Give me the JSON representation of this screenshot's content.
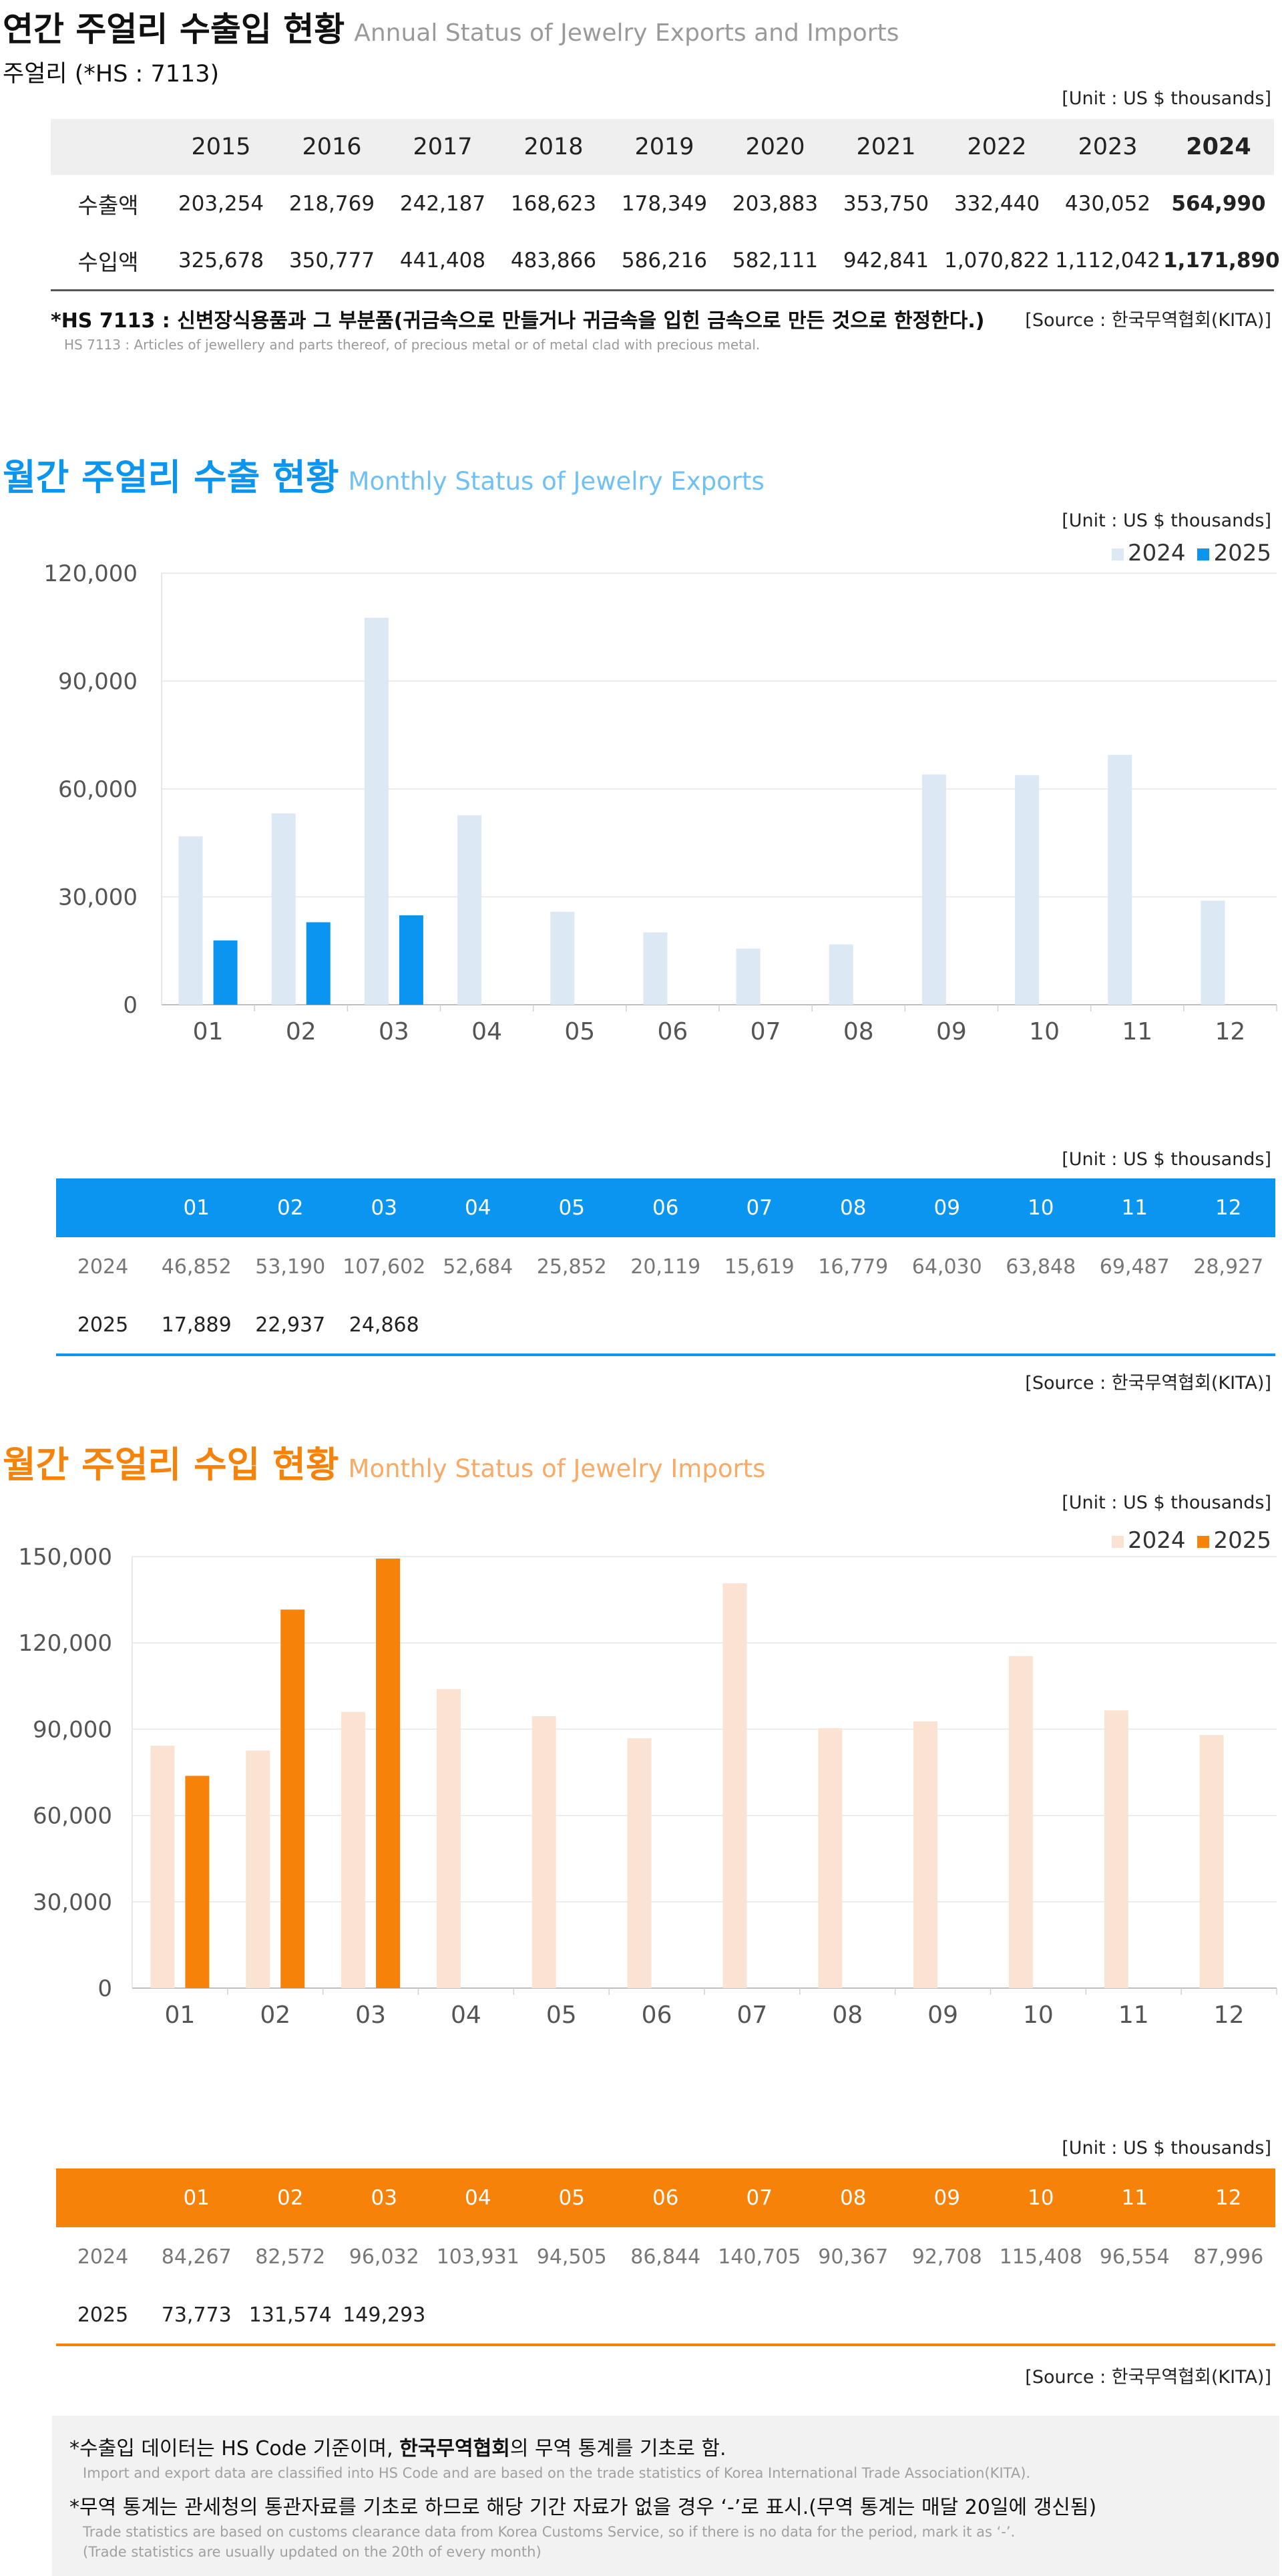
{
  "annual": {
    "title": "연간 주얼리 수출입 현황",
    "subtitle": "Annual Status of Jewelry Exports and Imports",
    "hs_label": "주얼리 (*HS : 7113)",
    "unit": "[Unit : US $ thousands]",
    "years": [
      "2015",
      "2016",
      "2017",
      "2018",
      "2019",
      "2020",
      "2021",
      "2022",
      "2023",
      "2024"
    ],
    "rows": [
      {
        "label": "수출액",
        "values": [
          "203,254",
          "218,769",
          "242,187",
          "168,623",
          "178,349",
          "203,883",
          "353,750",
          "332,440",
          "430,052",
          "564,990"
        ]
      },
      {
        "label": "수입액",
        "values": [
          "325,678",
          "350,777",
          "441,408",
          "483,866",
          "586,216",
          "582,111",
          "942,841",
          "1,070,822",
          "1,112,042",
          "1,171,890"
        ]
      }
    ],
    "footnote": "*HS 7113 : 신변장식용품과 그 부분품(귀금속으로 만들거나 귀금속을 입힌 금속으로 만든 것으로 한정한다.)",
    "footnote_en": "HS 7113 : Articles of jewellery and parts thereof, of precious metal or of metal clad with precious metal.",
    "source": "[Source : 한국무역협회(KITA)]"
  },
  "exports": {
    "title": "월간 주얼리 수출 현황",
    "subtitle": "Monthly Status of Jewelry Exports",
    "unit": "[Unit : US $ thousands]",
    "source": "[Source : 한국무역협회(KITA)]",
    "table_rows": [
      {
        "label": "2024",
        "values": [
          "46,852",
          "53,190",
          "107,602",
          "52,684",
          "25,852",
          "20,119",
          "15,619",
          "16,779",
          "64,030",
          "63,848",
          "69,487",
          "28,927"
        ]
      },
      {
        "label": "2025",
        "values": [
          "17,889",
          "22,937",
          "24,868",
          "",
          "",
          "",
          "",
          "",
          "",
          "",
          "",
          ""
        ]
      }
    ]
  },
  "imports": {
    "title": "월간 주얼리 수입 현황",
    "subtitle": "Monthly Status of Jewelry Imports",
    "unit": "[Unit : US $ thousands]",
    "source": "[Source : 한국무역협회(KITA)]",
    "table_rows": [
      {
        "label": "2024",
        "values": [
          "84,267",
          "82,572",
          "96,032",
          "103,931",
          "94,505",
          "86,844",
          "140,705",
          "90,367",
          "92,708",
          "115,408",
          "96,554",
          "87,996"
        ]
      },
      {
        "label": "2025",
        "values": [
          "73,773",
          "131,574",
          "149,293",
          "",
          "",
          "",
          "",
          "",
          "",
          "",
          "",
          ""
        ]
      }
    ]
  },
  "chart_data": [
    {
      "type": "bar",
      "categories": [
        "01",
        "02",
        "03",
        "04",
        "05",
        "06",
        "07",
        "08",
        "09",
        "10",
        "11",
        "12"
      ],
      "series": [
        {
          "name": "2024",
          "color": "#dde8f5",
          "values": [
            46852,
            53190,
            107602,
            52684,
            25852,
            20119,
            15619,
            16779,
            64030,
            63848,
            69487,
            28927
          ]
        },
        {
          "name": "2025",
          "color": "#0a96f0",
          "values": [
            17889,
            22937,
            24868,
            null,
            null,
            null,
            null,
            null,
            null,
            null,
            null,
            null
          ]
        }
      ],
      "ylim": [
        0,
        120000
      ],
      "yticks": [
        0,
        30000,
        60000,
        90000,
        120000
      ],
      "ytick_labels": [
        "0",
        "30,000",
        "60,000",
        "90,000",
        "120,000"
      ],
      "grid": true,
      "legend": "top-right"
    },
    {
      "type": "bar",
      "categories": [
        "01",
        "02",
        "03",
        "04",
        "05",
        "06",
        "07",
        "08",
        "09",
        "10",
        "11",
        "12"
      ],
      "series": [
        {
          "name": "2024",
          "color": "#fbe3d4",
          "values": [
            84267,
            82572,
            96032,
            103931,
            94505,
            86844,
            140705,
            90367,
            92708,
            115408,
            96554,
            87996
          ]
        },
        {
          "name": "2025",
          "color": "#f7820a",
          "values": [
            73773,
            131574,
            149293,
            null,
            null,
            null,
            null,
            null,
            null,
            null,
            null,
            null
          ]
        }
      ],
      "ylim": [
        0,
        150000
      ],
      "yticks": [
        0,
        30000,
        60000,
        90000,
        120000,
        150000
      ],
      "ytick_labels": [
        "0",
        "30,000",
        "60,000",
        "90,000",
        "120,000",
        "150,000"
      ],
      "grid": true,
      "legend": "top-right"
    }
  ],
  "notes": {
    "line1_pre": "*수출입 데이터는 HS Code 기준이며, ",
    "line1_bold": "한국무역협회",
    "line1_post": "의 무역 통계를 기초로 함.",
    "line1_en": "Import and export data are classified into HS Code and are based on the trade statistics of Korea International  Trade Association(KITA).",
    "line2": "*무역 통계는 관세청의  통관자료를 기초로 하므로 해당 기간 자료가 없을 경우 ‘-’로 표시.(무역 통계는 매달 20일에 갱신됨)",
    "line2_en1": "Trade statistics are based on customs clearance data from Korea Customs Service, so if there is no data for the period, mark it as ‘-’.",
    "line2_en2": "(Trade statistics are usually updated on the 20th of every month)"
  }
}
